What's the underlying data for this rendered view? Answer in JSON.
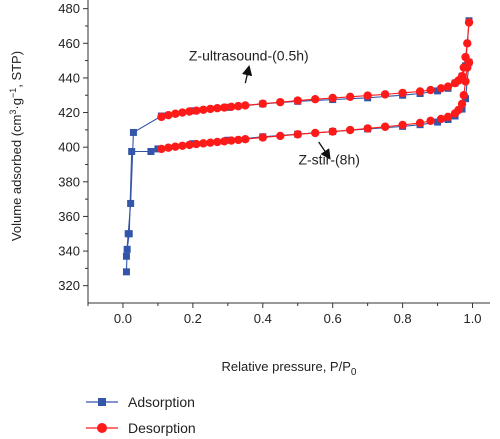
{
  "chart_data": {
    "type": "line",
    "xlabel": "Relative pressure, P/P",
    "xlabel_sub": "0",
    "ylabel_main": "Volume adsorbed (cm",
    "ylabel_sup1": "3",
    "ylabel_mid": "·g",
    "ylabel_sup2": "−1",
    "ylabel_end": ", STP)",
    "xlim": [
      -0.1,
      1.05
    ],
    "ylim": [
      310,
      485
    ],
    "x_ticks": [
      0.0,
      0.2,
      0.4,
      0.6,
      0.8,
      1.0
    ],
    "x_tick_labels": [
      "0.0",
      "0.2",
      "0.4",
      "0.6",
      "0.8",
      "1.0"
    ],
    "y_ticks": [
      320,
      340,
      360,
      380,
      400,
      420,
      440,
      460,
      480
    ],
    "y_tick_labels": [
      "320",
      "340",
      "360",
      "380",
      "400",
      "420",
      "440",
      "460",
      "480"
    ],
    "grid": false,
    "legend_position": "bottom-left",
    "series": [
      {
        "name": "Adsorption",
        "color": "#3355aa",
        "marker": "square",
        "curves": [
          {
            "x": [
              0.01,
              0.012,
              0.018,
              0.025,
              0.08,
              0.1,
              0.2,
              0.3,
              0.4,
              0.5,
              0.6,
              0.7,
              0.8,
              0.85,
              0.9,
              0.93,
              0.95,
              0.97,
              0.98,
              0.99
            ],
            "y": [
              328,
              341,
              350,
              397.5,
              397.5,
              399,
              402,
              404,
              406,
              407.5,
              409,
              410.5,
              412,
              413,
              414.5,
              416,
              418,
              422,
              428,
              449
            ]
          },
          {
            "x": [
              0.01,
              0.015,
              0.022,
              0.03,
              0.11,
              0.2,
              0.3,
              0.4,
              0.5,
              0.6,
              0.7,
              0.8,
              0.85,
              0.9,
              0.93,
              0.95,
              0.97,
              0.98,
              0.99
            ],
            "y": [
              337,
              350,
              367.5,
              408.5,
              418,
              421,
              423,
              425,
              426.5,
              427.5,
              428.5,
              430,
              431,
              432.5,
              434,
              437,
              441,
              447,
              473
            ]
          }
        ]
      },
      {
        "name": "Desorption",
        "color": "#ff1a1a",
        "marker": "circle",
        "curves": [
          {
            "x": [
              0.11,
              0.13,
              0.15,
              0.17,
              0.19,
              0.21,
              0.23,
              0.25,
              0.27,
              0.29,
              0.31,
              0.33,
              0.35,
              0.4,
              0.45,
              0.5,
              0.55,
              0.6,
              0.65,
              0.7,
              0.75,
              0.8,
              0.85,
              0.88,
              0.91,
              0.93,
              0.95,
              0.96,
              0.97,
              0.975,
              0.98,
              0.985,
              0.99
            ],
            "y": [
              399,
              399.7,
              400.3,
              400.8,
              401.3,
              401.8,
              402.2,
              402.6,
              403,
              403.4,
              403.8,
              404.2,
              404.6,
              405.6,
              406.5,
              407.4,
              408.2,
              409,
              409.9,
              410.8,
              411.8,
              412.8,
              414,
              415.2,
              416.3,
              417.5,
              419.5,
              421.5,
              425,
              430,
              438,
              446,
              449
            ]
          },
          {
            "x": [
              0.11,
              0.13,
              0.15,
              0.17,
              0.19,
              0.21,
              0.23,
              0.25,
              0.27,
              0.29,
              0.31,
              0.33,
              0.35,
              0.4,
              0.45,
              0.5,
              0.55,
              0.6,
              0.65,
              0.7,
              0.75,
              0.8,
              0.85,
              0.88,
              0.91,
              0.93,
              0.95,
              0.96,
              0.97,
              0.975,
              0.98,
              0.985,
              0.99
            ],
            "y": [
              417.5,
              418.5,
              419.3,
              420,
              420.6,
              421.1,
              421.6,
              422.1,
              422.5,
              422.9,
              423.3,
              423.7,
              424.1,
              425.1,
              426,
              426.9,
              427.7,
              428.4,
              429.1,
              429.8,
              430.5,
              431.3,
              432.2,
              433,
              434,
              435,
              437,
              438.5,
              441,
              446,
              452,
              460,
              472
            ]
          }
        ]
      }
    ],
    "annotations": [
      {
        "text": "Z-ultrasound-(0.5h)",
        "label_x": 0.36,
        "label_y": 450,
        "arrow_from": [
          0.35,
          437
        ],
        "arrow_to": [
          0.36,
          446
        ]
      },
      {
        "text": "Z-stir-(8h)",
        "label_x": 0.59,
        "label_y": 390,
        "arrow_from": [
          0.56,
          403
        ],
        "arrow_to": [
          0.59,
          394
        ]
      }
    ]
  }
}
